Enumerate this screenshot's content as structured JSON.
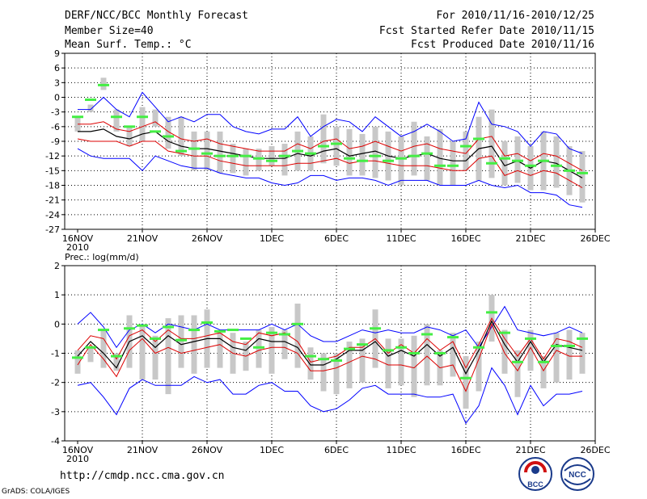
{
  "header": {
    "title": "DERF/NCC/BCC Monthly Forecast",
    "member": "Member Size=40",
    "variable": "Mean Surf. Temp.: °C",
    "period": "For 2010/11/16-2010/12/25",
    "started": "Fcst Started Refer Date 2010/11/15",
    "produced": "Fcst Produced Date 2010/11/16"
  },
  "footer": {
    "url": "http://cmdp.ncc.cma.gov.cn",
    "grads": "GrADS: COLA/IGES",
    "logo_bcc": "BCC",
    "logo_ncc": "NCC"
  },
  "colors": {
    "envelope": "#0000ff",
    "spread": "#dd0000",
    "mean": "#000000",
    "box": "#c8c8c8",
    "marker": "#44ee44"
  },
  "chart_data": [
    {
      "type": "line",
      "title": "Mean Surf. Temp.: °C",
      "x_tick_labels": [
        "16NOV",
        "21NOV",
        "26NOV",
        "1DEC",
        "6DEC",
        "11DEC",
        "16DEC",
        "21DEC",
        "26DEC"
      ],
      "x_year_label": "2010",
      "x_tick_days": [
        0,
        5,
        10,
        15,
        20,
        25,
        30,
        35,
        40
      ],
      "ylim": [
        -27,
        9
      ],
      "yticks": [
        "9",
        "6",
        "3",
        "0",
        "-3",
        "-6",
        "-9",
        "-12",
        "-15",
        "-18",
        "-21",
        "-24",
        "-27"
      ],
      "ytick_values": [
        9,
        6,
        3,
        0,
        -3,
        -6,
        -9,
        -12,
        -15,
        -18,
        -21,
        -24,
        -27
      ],
      "days": [
        0,
        1,
        2,
        3,
        4,
        5,
        6,
        7,
        8,
        9,
        10,
        11,
        12,
        13,
        14,
        15,
        16,
        17,
        18,
        19,
        20,
        21,
        22,
        23,
        24,
        25,
        26,
        27,
        28,
        29,
        30,
        31,
        32,
        33,
        34,
        35,
        36,
        37,
        38,
        39
      ],
      "series": [
        {
          "name": "max",
          "values": [
            -2.5,
            -2.5,
            0,
            -2.5,
            -4,
            1,
            -2,
            -5,
            -4,
            -5,
            -3.5,
            -3.5,
            -6,
            -7,
            -7.5,
            -6.5,
            -6.5,
            -4,
            -8,
            -6,
            -4.5,
            -5,
            -7,
            -4,
            -6,
            -8,
            -7,
            -5.5,
            -7,
            -9,
            -8.5,
            -1,
            -5.5,
            -6,
            -7,
            -10,
            -7,
            -7.5,
            -10.5,
            -11.5
          ]
        },
        {
          "name": "upper",
          "values": [
            -5.5,
            -5.5,
            -5,
            -6.5,
            -7,
            -6,
            -5,
            -7,
            -8.5,
            -9,
            -8.5,
            -9.5,
            -10,
            -10.5,
            -11,
            -11,
            -11,
            -9.5,
            -10.5,
            -9,
            -8.5,
            -10.5,
            -10,
            -9,
            -10,
            -11,
            -10,
            -9.5,
            -10.5,
            -11,
            -11.5,
            -8.5,
            -8,
            -12,
            -11.5,
            -13,
            -11.5,
            -12,
            -13.5,
            -15
          ]
        },
        {
          "name": "mean",
          "values": [
            -7,
            -7,
            -6.5,
            -8,
            -8.5,
            -7.5,
            -7,
            -9,
            -10,
            -10.5,
            -10.5,
            -11,
            -11.5,
            -12,
            -12.5,
            -12.5,
            -12.5,
            -11.5,
            -12,
            -11,
            -10.5,
            -12,
            -11.5,
            -11,
            -12,
            -12.5,
            -12,
            -11.5,
            -12.5,
            -13,
            -13,
            -10.5,
            -10,
            -14,
            -13,
            -14.5,
            -13,
            -13.5,
            -15,
            -16.5
          ]
        },
        {
          "name": "lower",
          "values": [
            -8.5,
            -9,
            -9,
            -9,
            -10,
            -9,
            -9,
            -11,
            -11.5,
            -12,
            -12,
            -13,
            -13.5,
            -14,
            -14,
            -14,
            -14,
            -13.5,
            -13.5,
            -13,
            -12.5,
            -13.5,
            -13,
            -13,
            -13.5,
            -14,
            -14,
            -14,
            -14.5,
            -15,
            -15,
            -12.5,
            -12,
            -16,
            -15,
            -16,
            -15,
            -15.5,
            -17,
            -18.5
          ]
        },
        {
          "name": "min",
          "values": [
            -10.5,
            -12,
            -12.5,
            -12.5,
            -12.5,
            -15,
            -12,
            -13,
            -14,
            -14.5,
            -14.5,
            -15.5,
            -16,
            -16.5,
            -16.5,
            -17.5,
            -18,
            -17.5,
            -16,
            -16,
            -17,
            -16.5,
            -16.5,
            -17,
            -18,
            -17,
            -17,
            -17,
            -18,
            -18,
            -18,
            -17,
            -18,
            -18.5,
            -18,
            -19.5,
            -19.5,
            -20,
            -22,
            -22.5
          ]
        },
        {
          "name": "box_top",
          "values": [
            -4,
            -1.5,
            4,
            -2.5,
            -6,
            -2,
            -2.5,
            -4,
            -4,
            -7,
            -7,
            -7,
            -9.5,
            -10.5,
            -10.5,
            -10,
            -9.5,
            -7,
            -8,
            -3.5,
            -6,
            -6.5,
            -7.5,
            -6,
            -7,
            -8,
            -5,
            -8,
            -6.5,
            -9,
            -7,
            -4,
            -2.5,
            -9,
            -8,
            -10,
            -7,
            -8,
            -10,
            -11
          ]
        },
        {
          "name": "box_bottom",
          "values": [
            -7,
            -3,
            1.5,
            -7,
            -10,
            -9,
            -6,
            -10.5,
            -12,
            -15,
            -15,
            -15.5,
            -15.5,
            -16,
            -15,
            -14,
            -16,
            -15,
            -15,
            -13.5,
            -14,
            -16,
            -16,
            -16.5,
            -17,
            -18,
            -16,
            -17,
            -18,
            -18,
            -15,
            -17,
            -16.5,
            -18,
            -17.5,
            -19,
            -19,
            -18.5,
            -20,
            -21.5
          ]
        },
        {
          "name": "marker",
          "values": [
            -4,
            -0.5,
            2.5,
            -4,
            -6,
            -4,
            -7,
            -8,
            -11,
            -10.5,
            -11.5,
            -12,
            -12,
            -12,
            -12.5,
            -13,
            -12,
            -11,
            -11.5,
            -10,
            -9.5,
            -12.5,
            -13,
            -12,
            -13,
            -12.5,
            -12,
            -11.5,
            -14,
            -14,
            -10,
            -8.5,
            -13.5,
            -12.5,
            -13,
            -14,
            -13,
            -14,
            -15,
            -15.5
          ]
        }
      ]
    },
    {
      "type": "line",
      "title": "Prec.: log(mm/d)",
      "x_tick_labels": [
        "16NOV",
        "21NOV",
        "26NOV",
        "1DEC",
        "6DEC",
        "11DEC",
        "16DEC",
        "21DEC",
        "26DEC"
      ],
      "x_year_label": "2010",
      "x_tick_days": [
        0,
        5,
        10,
        15,
        20,
        25,
        30,
        35,
        40
      ],
      "ylim": [
        -4,
        2
      ],
      "yticks": [
        "2",
        "1",
        "0",
        "-1",
        "-2",
        "-3",
        "-4"
      ],
      "ytick_values": [
        2,
        1,
        0,
        -1,
        -2,
        -3,
        -4
      ],
      "days": [
        0,
        1,
        2,
        3,
        4,
        5,
        6,
        7,
        8,
        9,
        10,
        11,
        12,
        13,
        14,
        15,
        16,
        17,
        18,
        19,
        20,
        21,
        22,
        23,
        24,
        25,
        26,
        27,
        28,
        29,
        30,
        31,
        32,
        33,
        34,
        35,
        36,
        37,
        38,
        39
      ],
      "series": [
        {
          "name": "max",
          "values": [
            0,
            0.4,
            -0.1,
            -0.8,
            -0.2,
            0,
            -0.3,
            0,
            -0.1,
            -0.2,
            0,
            -0.2,
            -0.2,
            -0.2,
            -0.2,
            0,
            -0.2,
            0,
            -0.4,
            -0.6,
            -0.6,
            -0.4,
            -0.2,
            -0.3,
            -0.2,
            -0.3,
            -0.3,
            -0.1,
            -0.2,
            -0.4,
            -0.2,
            -0.8,
            -0.1,
            0.6,
            -0.2,
            -0.3,
            -0.4,
            -0.3,
            -0.1,
            -0.3
          ]
        },
        {
          "name": "upper",
          "values": [
            -0.9,
            -0.4,
            -0.5,
            -1.2,
            -0.4,
            -0.2,
            -0.6,
            -0.2,
            -0.5,
            -0.5,
            -0.4,
            -0.3,
            -0.6,
            -0.7,
            -0.3,
            -0.4,
            -0.3,
            -0.6,
            -1.3,
            -1.2,
            -1.1,
            -0.8,
            -0.8,
            -0.5,
            -1,
            -0.7,
            -1,
            -0.5,
            -0.9,
            -0.6,
            -1.5,
            -0.7,
            0.2,
            -0.5,
            -1.1,
            -0.5,
            -1.2,
            -0.5,
            -0.6,
            -0.8
          ]
        },
        {
          "name": "mean",
          "values": [
            -1.1,
            -0.6,
            -1,
            -1.5,
            -0.6,
            -0.4,
            -0.8,
            -0.4,
            -0.7,
            -0.6,
            -0.5,
            -0.5,
            -0.8,
            -0.9,
            -0.5,
            -0.6,
            -0.6,
            -0.8,
            -1.4,
            -1.4,
            -1.2,
            -0.9,
            -0.9,
            -0.6,
            -1.1,
            -0.9,
            -1.1,
            -0.7,
            -1.1,
            -0.8,
            -1.7,
            -0.9,
            0.1,
            -0.7,
            -1.3,
            -0.6,
            -1.3,
            -0.7,
            -0.8,
            -0.9
          ]
        },
        {
          "name": "lower",
          "values": [
            -1.4,
            -0.7,
            -1.2,
            -1.8,
            -0.9,
            -0.5,
            -1,
            -0.8,
            -1,
            -0.9,
            -0.8,
            -0.7,
            -1,
            -1.1,
            -0.9,
            -0.8,
            -0.8,
            -1,
            -1.6,
            -1.6,
            -1.5,
            -1.3,
            -1.1,
            -1.2,
            -1.4,
            -1.4,
            -1.5,
            -1.1,
            -1.5,
            -1.4,
            -2.3,
            -1.2,
            0,
            -1,
            -1.6,
            -0.8,
            -1.6,
            -0.9,
            -1.1,
            -1.1
          ]
        },
        {
          "name": "min",
          "values": [
            -2.1,
            -2,
            -2.5,
            -3.1,
            -2.2,
            -1.9,
            -2.1,
            -2.1,
            -2.1,
            -1.8,
            -2,
            -1.9,
            -2.4,
            -2.4,
            -2.1,
            -2,
            -2.3,
            -2.3,
            -2.8,
            -3,
            -2.9,
            -2.6,
            -2.2,
            -2.1,
            -2.4,
            -2.4,
            -2.4,
            -2.5,
            -2.5,
            -2.4,
            -3.4,
            -2.8,
            -1.5,
            -2.1,
            -3.1,
            -2.1,
            -2.8,
            -2.4,
            -2.4,
            -2.3
          ]
        },
        {
          "name": "box_top",
          "values": [
            -0.9,
            -0.8,
            -0.2,
            -1,
            0.3,
            0,
            -0.4,
            0.2,
            0.3,
            0.3,
            0.5,
            -0.3,
            -0.3,
            -0.6,
            -0.2,
            -0.1,
            -0.2,
            0.7,
            -0.8,
            -1,
            -1,
            -0.6,
            -0.5,
            0.5,
            -0.5,
            -0.5,
            -0.4,
            0,
            -0.9,
            -0.3,
            -1.1,
            -0.6,
            1,
            -0.2,
            -0.9,
            -0.2,
            -1.1,
            -0.3,
            -0.2,
            -0.3
          ]
        },
        {
          "name": "box_bottom",
          "values": [
            -1.7,
            -1.3,
            -1.5,
            -1.6,
            -1.5,
            -1.9,
            -1.9,
            -2.4,
            -1.5,
            -1.7,
            -1.5,
            -1.5,
            -1.7,
            -1.6,
            -1.5,
            -1.7,
            -1.2,
            -1.5,
            -1.9,
            -2.3,
            -2.4,
            -2.2,
            -2,
            -1.5,
            -2.2,
            -2.1,
            -2.5,
            -2.1,
            -2.1,
            -1.8,
            -2.9,
            -2.3,
            -0.6,
            -1.7,
            -2.5,
            -1.6,
            -2.2,
            -2,
            -1.9,
            -1.7
          ]
        },
        {
          "name": "marker",
          "values": [
            -1.15,
            -0.8,
            -0.2,
            -1.1,
            -0.15,
            -0.05,
            -0.5,
            -0.1,
            -0.55,
            -0.2,
            0.05,
            -0.25,
            -0.2,
            -0.5,
            -0.8,
            -0.3,
            -0.35,
            0,
            -1.1,
            -1.2,
            -1.25,
            -0.85,
            -0.7,
            -0.15,
            -0.9,
            -0.8,
            -1,
            -0.35,
            -1,
            -0.45,
            -1.85,
            -0.8,
            0.4,
            -0.3,
            -1.3,
            -0.5,
            -1.3,
            -0.75,
            -0.75,
            -0.5
          ]
        }
      ]
    }
  ]
}
